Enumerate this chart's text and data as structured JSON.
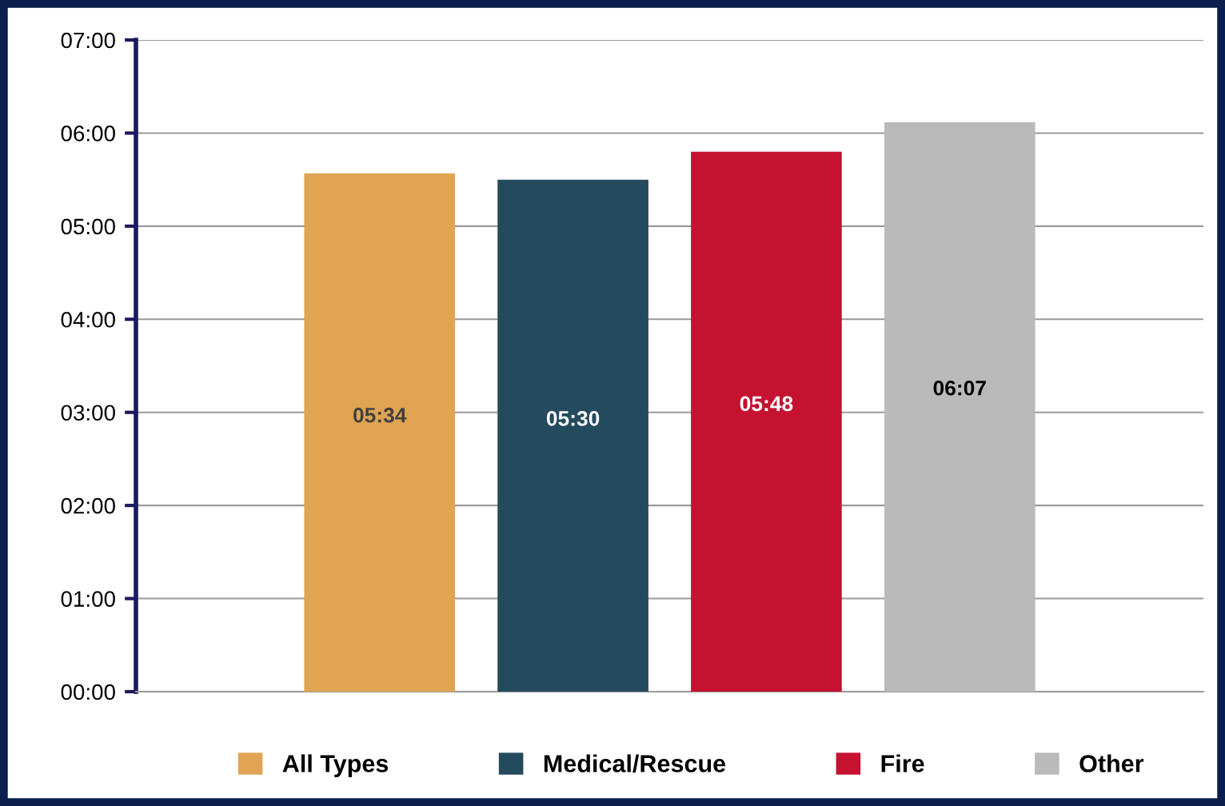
{
  "chart_data": {
    "type": "bar",
    "categories": [
      null
    ],
    "series": [
      {
        "name": "All Types",
        "color": "#e0a452",
        "values": [
          5.567
        ],
        "value_labels": [
          "05:34"
        ]
      },
      {
        "name": "Medical/Rescue",
        "color": "#244a5e",
        "values": [
          5.5
        ],
        "value_labels": [
          "05:30"
        ]
      },
      {
        "name": "Fire",
        "color": "#c41230",
        "values": [
          5.8
        ],
        "value_labels": [
          "05:48"
        ]
      },
      {
        "name": "Other",
        "color": "#bababa",
        "values": [
          6.117
        ],
        "value_labels": [
          "06:07"
        ]
      }
    ],
    "ylim": [
      0,
      7
    ],
    "yticks": [
      {
        "value": 0,
        "label": "00:00"
      },
      {
        "value": 1,
        "label": "01:00"
      },
      {
        "value": 2,
        "label": "02:00"
      },
      {
        "value": 3,
        "label": "03:00"
      },
      {
        "value": 4,
        "label": "04:00"
      },
      {
        "value": 5,
        "label": "05:00"
      },
      {
        "value": 6,
        "label": "06:00"
      },
      {
        "value": 7,
        "label": "07:00"
      }
    ],
    "grid": "y",
    "legend": "bottom"
  }
}
